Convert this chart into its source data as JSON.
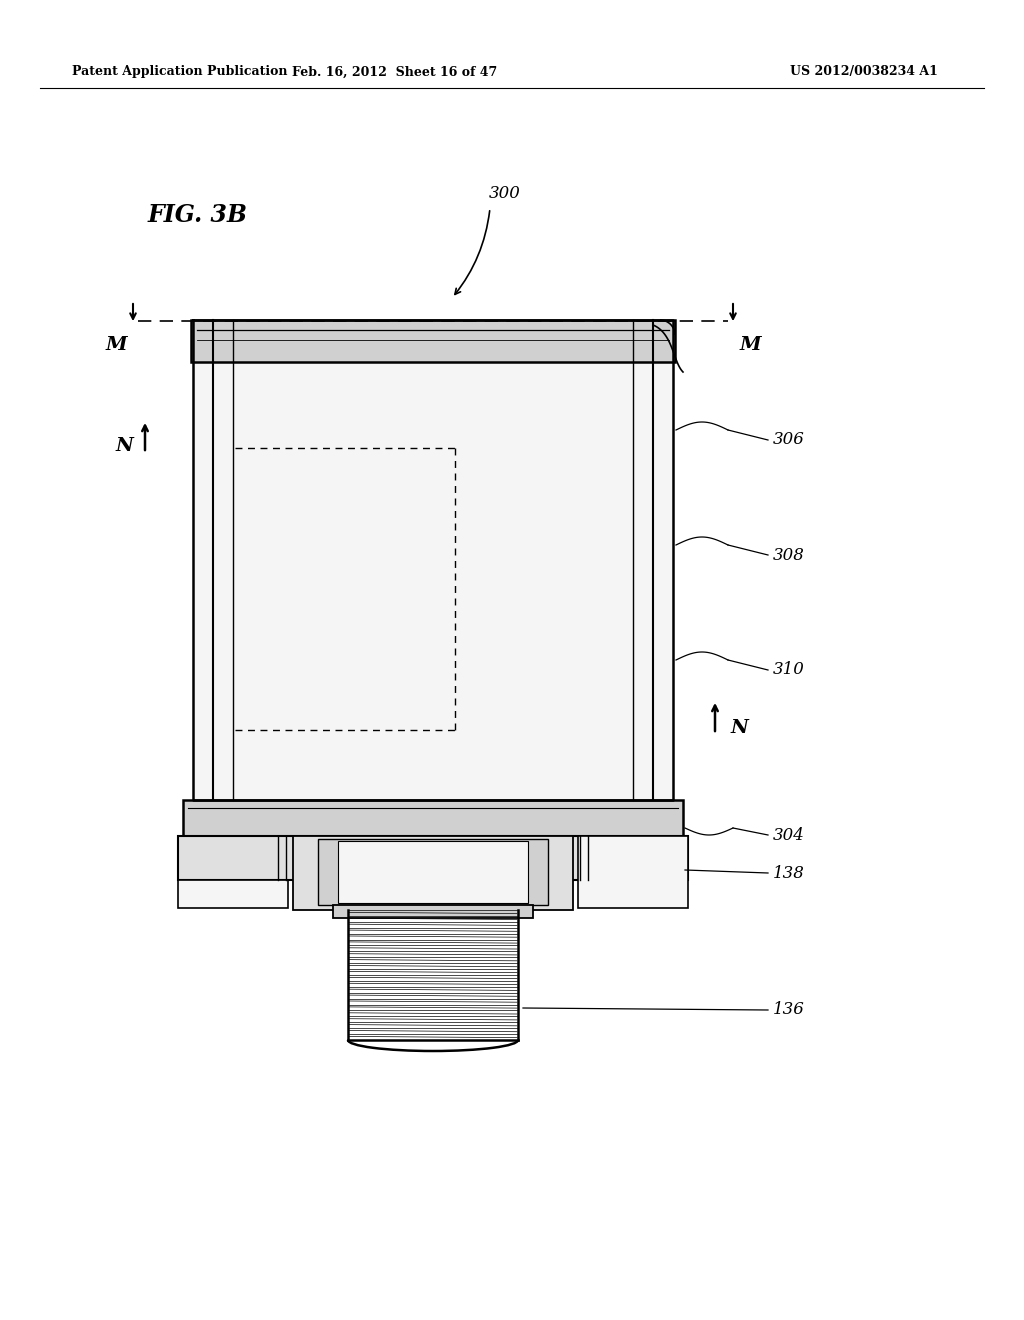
{
  "bg_color": "#ffffff",
  "header_left": "Patent Application Publication",
  "header_mid": "Feb. 16, 2012  Sheet 16 of 47",
  "header_right": "US 2012/0038234 A1",
  "fig_label": "FIG. 3B",
  "part_300": "300",
  "part_304": "304",
  "part_306": "306",
  "part_308": "308",
  "part_310": "310",
  "part_138": "138",
  "part_136": "136",
  "label_M": "M",
  "label_N": "N",
  "line_color": "#000000",
  "fill_light": "#f5f5f5",
  "fill_gray": "#d0d0d0",
  "fill_mid": "#e0e0e0"
}
